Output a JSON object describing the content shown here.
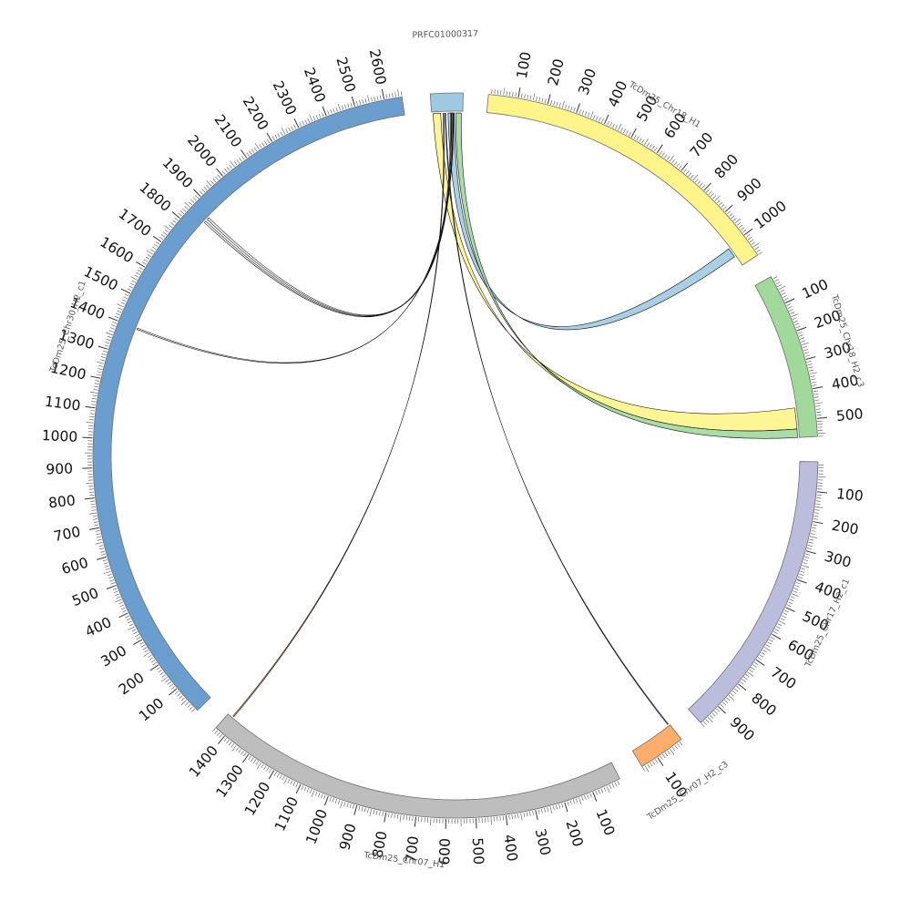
{
  "diagram": {
    "type": "circos",
    "sequences": [
      {
        "id": "PRFC01000317",
        "name": "PRFC01000317",
        "length": 110,
        "color": "#9ecae1",
        "show_ticks": false
      },
      {
        "id": "chr18h1",
        "name": "TcDm25_Chr18_H1",
        "length": 1080,
        "color": "#fef48a",
        "show_ticks": true
      },
      {
        "id": "chr18h2",
        "name": "TcDm25_Chr18_H2_c3",
        "length": 560,
        "color": "#a1d99b",
        "show_ticks": true
      },
      {
        "id": "chr17h2",
        "name": "TcDm25_Chr17_H2_c1",
        "length": 980,
        "color": "#bcbddc",
        "show_ticks": true
      },
      {
        "id": "chr07h2",
        "name": "TcDm25_Chr07_H2_c3",
        "length": 160,
        "color": "#fdae6b",
        "show_ticks": true
      },
      {
        "id": "chr07h1",
        "name": "TcDm25_Chr07_H1",
        "length": 1440,
        "color": "#bdbdbd",
        "show_ticks": true
      },
      {
        "id": "chr30h2",
        "name": "TcDm25_Chr30_H2_c1",
        "length": 2660,
        "color": "#6a9ecf",
        "show_ticks": true
      }
    ],
    "links": [
      {
        "from": {
          "seq": "PRFC01000317",
          "start": 58,
          "end": 80
        },
        "to": {
          "seq": "TcDm25_Chr18_H1",
          "start": 1005,
          "end": 1040
        },
        "color": "#9ecae1"
      },
      {
        "from": {
          "seq": "PRFC01000317",
          "start": 5,
          "end": 32
        },
        "to": {
          "seq": "TcDm25_Chr18_H2_c3",
          "start": 455,
          "end": 530
        },
        "color": "#fef48a"
      },
      {
        "from": {
          "seq": "PRFC01000317",
          "start": 85,
          "end": 105
        },
        "to": {
          "seq": "TcDm25_Chr18_H2_c3",
          "start": 530,
          "end": 560
        },
        "color": "#a1d99b"
      },
      {
        "from": {
          "seq": "PRFC01000317",
          "start": 66,
          "end": 69
        },
        "to": {
          "seq": "TcDm25_Chr30_H2_c1",
          "start": 1860,
          "end": 1868
        },
        "color": "#ffffff"
      },
      {
        "from": {
          "seq": "PRFC01000317",
          "start": 71,
          "end": 74
        },
        "to": {
          "seq": "TcDm25_Chr30_H2_c1",
          "start": 1845,
          "end": 1852
        },
        "color": "#ffffff"
      },
      {
        "from": {
          "seq": "PRFC01000317",
          "start": 76,
          "end": 78
        },
        "to": {
          "seq": "TcDm25_Chr30_H2_c1",
          "start": 1397,
          "end": 1402
        },
        "color": "#ffffff"
      },
      {
        "from": {
          "seq": "PRFC01000317",
          "start": 40,
          "end": 43
        },
        "to": {
          "seq": "TcDm25_Chr07_H1",
          "start": 1418,
          "end": 1422
        },
        "color": "#fdae6b"
      },
      {
        "from": {
          "seq": "PRFC01000317",
          "start": 47,
          "end": 50
        },
        "to": {
          "seq": "TcDm25_Chr07_H2_c3",
          "start": 3,
          "end": 6
        },
        "color": "#8c8fd8"
      }
    ]
  }
}
